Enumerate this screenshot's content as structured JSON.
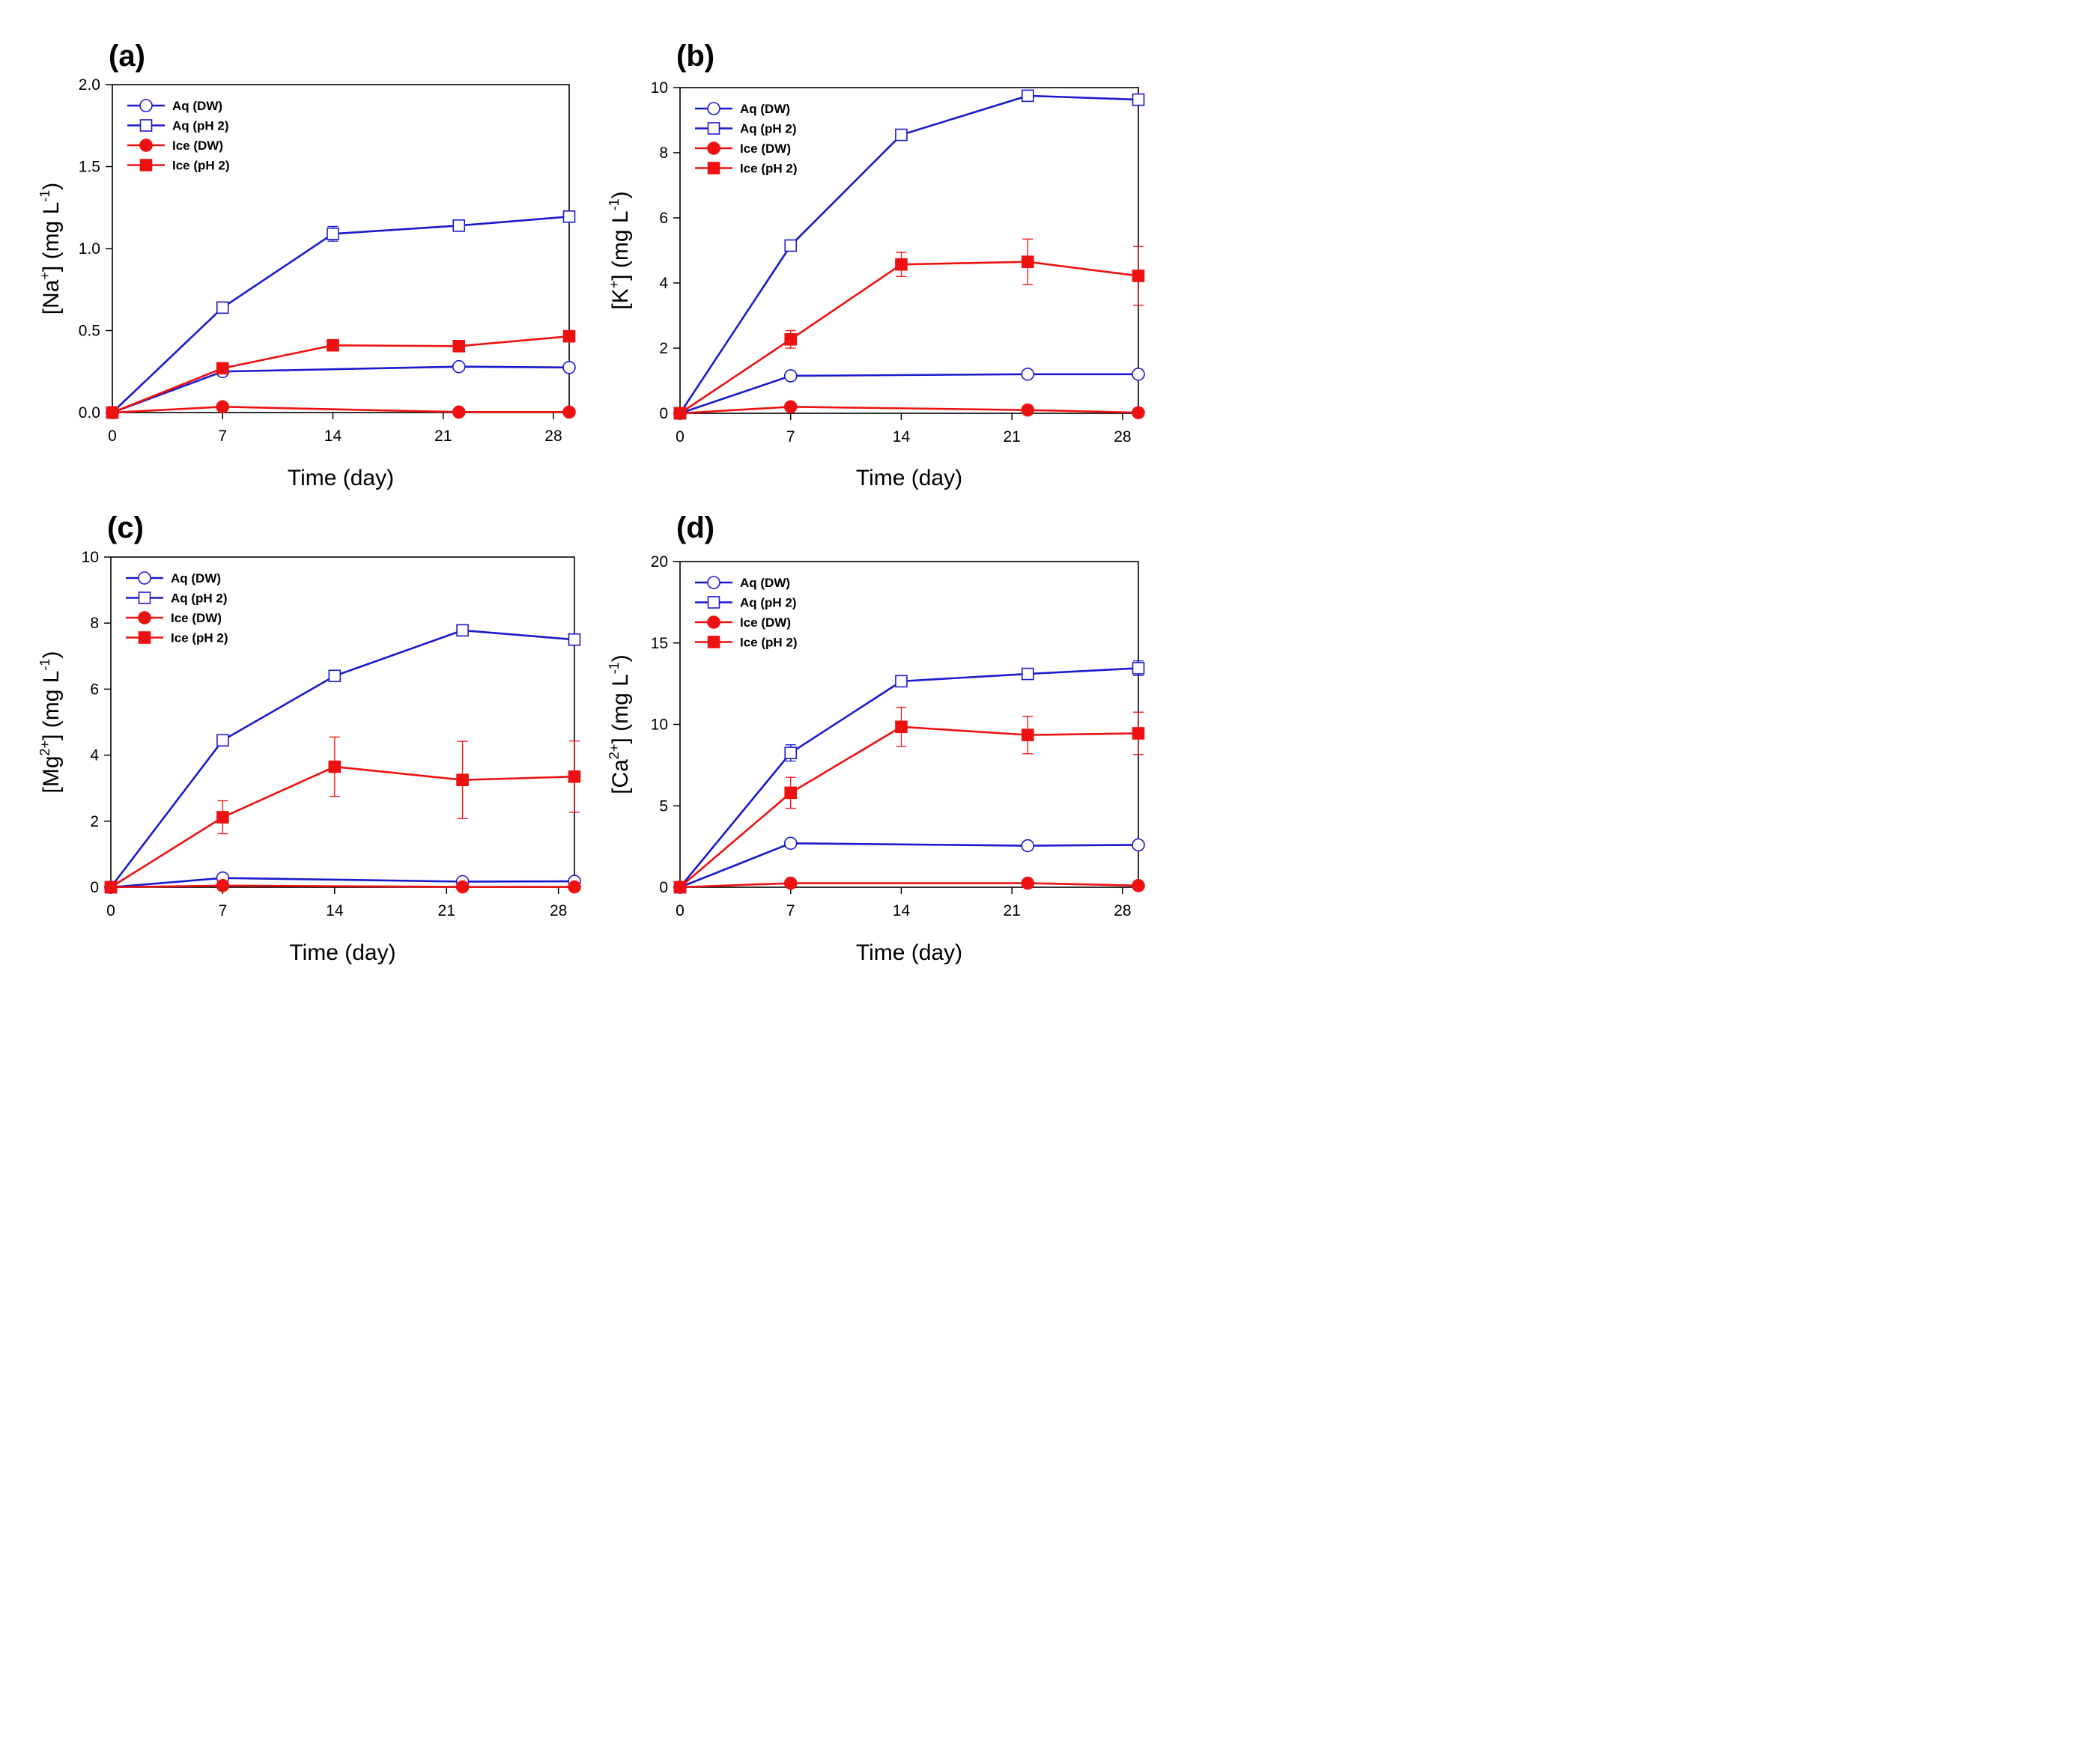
{
  "chart_data": [
    {
      "type": "line",
      "panel_label": "(a)",
      "ylabel": {
        "open": "[Na",
        "sup": "+",
        "close": "] (mg L",
        "unit_sup": "-1",
        "end": ")"
      },
      "xlabel": "Time (day)",
      "xlim": [
        0,
        29
      ],
      "ylim": [
        0,
        2.0
      ],
      "xticks": [
        "0",
        "7",
        "14",
        "21",
        "28"
      ],
      "xtick_values": [
        0,
        7,
        14,
        21,
        28
      ],
      "yticks": [
        "0.0",
        "0.5",
        "1.0",
        "1.5",
        "2.0"
      ],
      "ytick_values": [
        0,
        0.5,
        1.0,
        1.5,
        2.0
      ],
      "legend_position": "top-left",
      "series": [
        {
          "name": "Aq (DW)",
          "color": "#1a1acc",
          "marker": "circle-open",
          "x": [
            0,
            7,
            22,
            29
          ],
          "y": [
            0,
            0.25,
            0.28,
            0.275
          ],
          "err": [
            0,
            0,
            0,
            0
          ]
        },
        {
          "name": "Aq (pH 2)",
          "color": "#1a1acc",
          "marker": "square-open",
          "x": [
            0,
            7,
            14,
            22,
            29
          ],
          "y": [
            0,
            0.64,
            1.09,
            1.14,
            1.195
          ],
          "err": [
            0,
            0,
            0.045,
            0.01,
            0.01
          ]
        },
        {
          "name": "Ice (DW)",
          "color": "#ee1111",
          "marker": "circle-filled",
          "x": [
            0,
            7,
            22,
            29
          ],
          "y": [
            0,
            0.035,
            0.003,
            0.003
          ],
          "err": [
            0,
            0,
            0,
            0
          ]
        },
        {
          "name": "Ice (pH 2)",
          "color": "#ee1111",
          "marker": "square-filled",
          "x": [
            0,
            7,
            14,
            22,
            29
          ],
          "y": [
            0,
            0.27,
            0.41,
            0.405,
            0.465
          ],
          "err": [
            0,
            0,
            0,
            0,
            0
          ]
        }
      ]
    },
    {
      "type": "line",
      "panel_label": "(b)",
      "ylabel": {
        "open": "[K",
        "sup": "+",
        "close": "] (mg L",
        "unit_sup": "-1",
        "end": ")"
      },
      "xlabel": "Time (day)",
      "xlim": [
        0,
        29
      ],
      "ylim": [
        0,
        10
      ],
      "xticks": [
        "0",
        "7",
        "14",
        "21",
        "28"
      ],
      "xtick_values": [
        0,
        7,
        14,
        21,
        28
      ],
      "yticks": [
        "0",
        "2",
        "4",
        "6",
        "8",
        "10"
      ],
      "ytick_values": [
        0,
        2,
        4,
        6,
        8,
        10
      ],
      "legend_position": "top-left",
      "series": [
        {
          "name": "Aq (DW)",
          "color": "#1a1acc",
          "marker": "circle-open",
          "x": [
            0,
            7,
            22,
            29
          ],
          "y": [
            0,
            1.15,
            1.2,
            1.2
          ],
          "err": [
            0,
            0,
            0,
            0
          ]
        },
        {
          "name": "Aq (pH 2)",
          "color": "#1a1acc",
          "marker": "square-open",
          "x": [
            0,
            7,
            14,
            22,
            29
          ],
          "y": [
            0,
            5.15,
            8.55,
            9.75,
            9.63
          ],
          "err": [
            0,
            0,
            0,
            0,
            0
          ]
        },
        {
          "name": "Ice (DW)",
          "color": "#ee1111",
          "marker": "circle-filled",
          "x": [
            0,
            7,
            22,
            29
          ],
          "y": [
            0,
            0.2,
            0.1,
            0.02
          ],
          "err": [
            0,
            0,
            0,
            0
          ]
        },
        {
          "name": "Ice (pH 2)",
          "color": "#ee1111",
          "marker": "square-filled",
          "x": [
            0,
            7,
            14,
            22,
            29
          ],
          "y": [
            0,
            2.27,
            4.57,
            4.65,
            4.22
          ],
          "err": [
            0,
            0.27,
            0.37,
            0.7,
            0.9
          ]
        }
      ]
    },
    {
      "type": "line",
      "panel_label": "(c)",
      "ylabel": {
        "open": "[Mg",
        "sup": "2+",
        "close": "] (mg L",
        "unit_sup": "-1",
        "end": ")"
      },
      "xlabel": "Time (day)",
      "xlim": [
        0,
        29
      ],
      "ylim": [
        0,
        10
      ],
      "xticks": [
        "0",
        "7",
        "14",
        "21",
        "28"
      ],
      "xtick_values": [
        0,
        7,
        14,
        21,
        28
      ],
      "yticks": [
        "0",
        "2",
        "4",
        "6",
        "8",
        "10"
      ],
      "ytick_values": [
        0,
        2,
        4,
        6,
        8,
        10
      ],
      "legend_position": "top-left",
      "series": [
        {
          "name": "Aq (DW)",
          "color": "#1a1acc",
          "marker": "circle-open",
          "x": [
            0,
            7,
            22,
            29
          ],
          "y": [
            0,
            0.28,
            0.17,
            0.18
          ],
          "err": [
            0,
            0,
            0,
            0
          ]
        },
        {
          "name": "Aq (pH 2)",
          "color": "#1a1acc",
          "marker": "square-open",
          "x": [
            0,
            7,
            14,
            22,
            29
          ],
          "y": [
            0,
            4.45,
            6.4,
            7.78,
            7.5
          ],
          "err": [
            0,
            0,
            0,
            0,
            0
          ]
        },
        {
          "name": "Ice (DW)",
          "color": "#ee1111",
          "marker": "circle-filled",
          "x": [
            0,
            7,
            22,
            29
          ],
          "y": [
            0,
            0.05,
            0.01,
            0.01
          ],
          "err": [
            0,
            0,
            0,
            0
          ]
        },
        {
          "name": "Ice (pH 2)",
          "color": "#ee1111",
          "marker": "square-filled",
          "x": [
            0,
            7,
            14,
            22,
            29
          ],
          "y": [
            0,
            2.12,
            3.65,
            3.25,
            3.35
          ],
          "err": [
            0,
            0.5,
            0.9,
            1.17,
            1.08
          ]
        }
      ]
    },
    {
      "type": "line",
      "panel_label": "(d)",
      "ylabel": {
        "open": "[Ca",
        "sup": "2+",
        "close": "] (mg L",
        "unit_sup": "-1",
        "end": ")"
      },
      "xlabel": "Time (day)",
      "xlim": [
        0,
        29
      ],
      "ylim": [
        0,
        20
      ],
      "xticks": [
        "0",
        "7",
        "14",
        "21",
        "28"
      ],
      "xtick_values": [
        0,
        7,
        14,
        21,
        28
      ],
      "yticks": [
        "0",
        "5",
        "10",
        "15",
        "20"
      ],
      "ytick_values": [
        0,
        5,
        10,
        15,
        20
      ],
      "legend_position": "top-left",
      "series": [
        {
          "name": "Aq (DW)",
          "color": "#1a1acc",
          "marker": "circle-open",
          "x": [
            0,
            7,
            22,
            29
          ],
          "y": [
            0,
            2.7,
            2.55,
            2.6
          ],
          "err": [
            0,
            0,
            0,
            0
          ]
        },
        {
          "name": "Aq (pH 2)",
          "color": "#1a1acc",
          "marker": "square-open",
          "x": [
            0,
            7,
            14,
            22,
            29
          ],
          "y": [
            0,
            8.25,
            12.65,
            13.1,
            13.45
          ],
          "err": [
            0,
            0.5,
            0.2,
            0.15,
            0.45
          ]
        },
        {
          "name": "Ice (DW)",
          "color": "#ee1111",
          "marker": "circle-filled",
          "x": [
            0,
            7,
            22,
            29
          ],
          "y": [
            0,
            0.25,
            0.25,
            0.1
          ],
          "err": [
            0,
            0,
            0,
            0
          ]
        },
        {
          "name": "Ice (pH 2)",
          "color": "#ee1111",
          "marker": "square-filled",
          "x": [
            0,
            7,
            14,
            22,
            29
          ],
          "y": [
            0,
            5.8,
            9.85,
            9.35,
            9.45
          ],
          "err": [
            0,
            0.95,
            1.2,
            1.15,
            1.3
          ]
        }
      ]
    }
  ]
}
